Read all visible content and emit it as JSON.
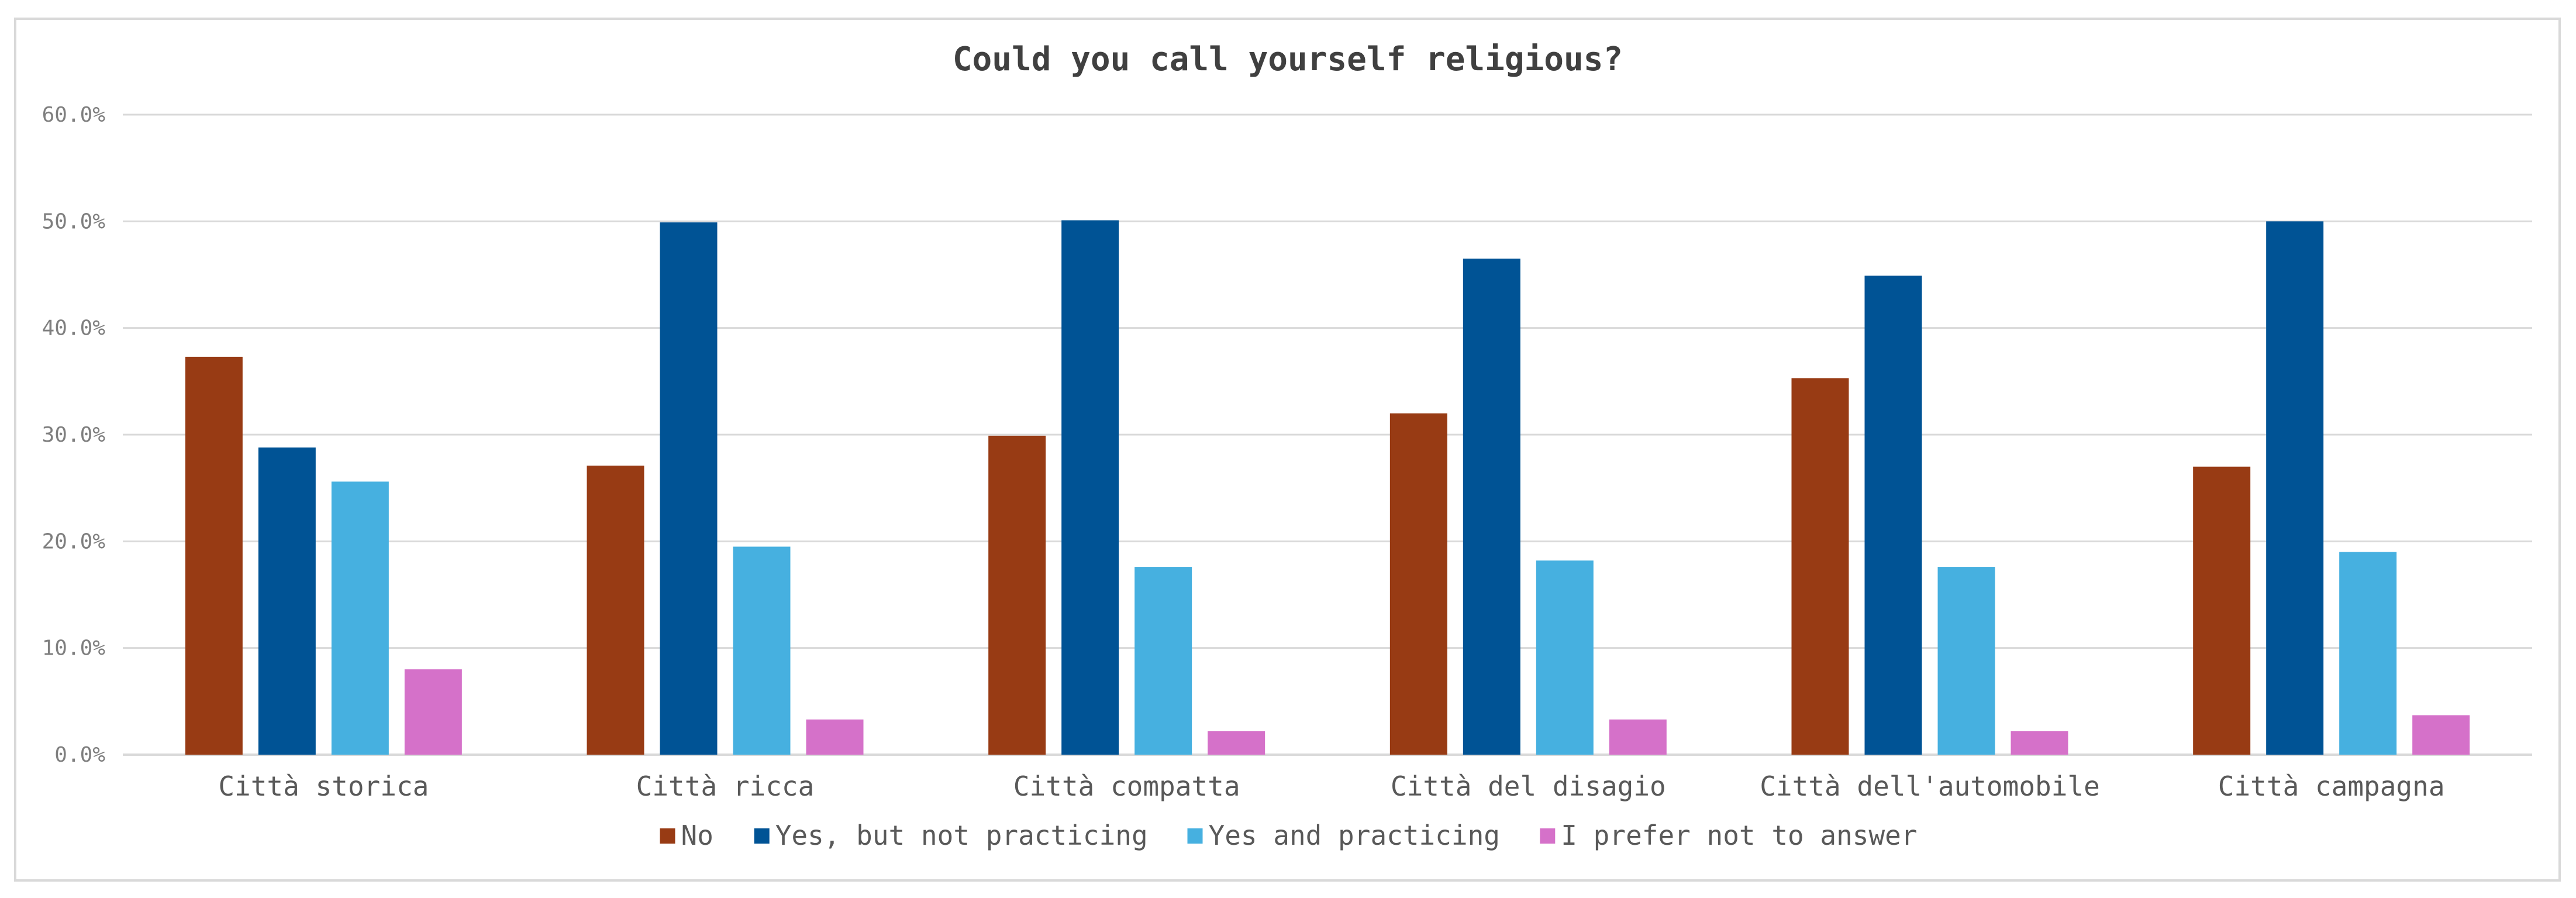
{
  "chart_data": {
    "type": "bar",
    "title": "Could you call yourself religious?",
    "xlabel": "",
    "ylabel": "",
    "ylim": [
      0,
      0.6
    ],
    "yticks": [
      0,
      0.1,
      0.2,
      0.3,
      0.4,
      0.5,
      0.6
    ],
    "ytick_labels": [
      "0.0%",
      "10.0%",
      "20.0%",
      "30.0%",
      "40.0%",
      "50.0%",
      "60.0%"
    ],
    "grid": true,
    "legend_position": "bottom",
    "categories": [
      "Città storica",
      "Città ricca",
      "Città compatta",
      "Città del disagio",
      "Città dell'automobile",
      "Città campagna"
    ],
    "series": [
      {
        "name": "No",
        "color": "#983b14",
        "values": [
          0.373,
          0.271,
          0.299,
          0.32,
          0.353,
          0.27
        ]
      },
      {
        "name": "Yes, but not practicing",
        "color": "#005395",
        "values": [
          0.288,
          0.499,
          0.501,
          0.465,
          0.449,
          0.5
        ]
      },
      {
        "name": "Yes and practicing",
        "color": "#46b0e0",
        "values": [
          0.256,
          0.195,
          0.176,
          0.182,
          0.176,
          0.19
        ]
      },
      {
        "name": "I prefer not to answer",
        "color": "#d571c9",
        "values": [
          0.08,
          0.033,
          0.022,
          0.033,
          0.022,
          0.037
        ]
      }
    ]
  }
}
